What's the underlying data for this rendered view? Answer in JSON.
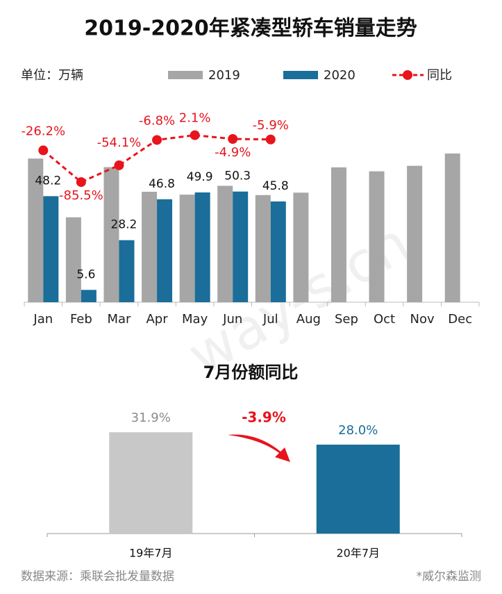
{
  "chart_data": [
    {
      "type": "bar",
      "title": "2019-2020年紧凑型轿车销量走势",
      "subtitle": "单位：万辆",
      "categories": [
        "Jan",
        "Feb",
        "Mar",
        "Apr",
        "May",
        "Jun",
        "Jul",
        "Aug",
        "Sep",
        "Oct",
        "Nov",
        "Dec"
      ],
      "series": [
        {
          "name": "2019",
          "color": "#a6a6a6",
          "values": [
            65.3,
            38.6,
            61.4,
            50.2,
            48.9,
            52.9,
            48.7,
            49.8,
            61.3,
            59.5,
            62.0,
            67.6
          ]
        },
        {
          "name": "2020",
          "color": "#1a6e99",
          "values": [
            48.2,
            5.6,
            28.2,
            46.8,
            49.9,
            50.3,
            45.8,
            null,
            null,
            null,
            null,
            null
          ]
        },
        {
          "name": "同比",
          "color": "#e8141c",
          "type": "line",
          "axis": "y2",
          "values": [
            -26.2,
            -85.5,
            -54.1,
            -6.8,
            2.1,
            -4.9,
            -5.9,
            null,
            null,
            null,
            null,
            null
          ],
          "value_labels": [
            "-26.2%",
            "-85.5%",
            "-54.1%",
            "-6.8%",
            "2.1%",
            "-4.9%",
            "-5.9%",
            null,
            null,
            null,
            null,
            null
          ]
        }
      ],
      "ylim": [
        0,
        90
      ],
      "y2lim": [
        -310,
        60
      ]
    },
    {
      "type": "bar",
      "title": "7月份额同比",
      "categories": [
        "19年7月",
        "20年7月"
      ],
      "values": [
        31.9,
        28.0
      ],
      "value_labels": [
        "31.9%",
        "28.0%"
      ],
      "colors": [
        "#c8c8c8",
        "#1a6e99"
      ],
      "label_colors": [
        "#8c8c8c",
        "#1a6e99"
      ],
      "ylim": [
        0,
        35
      ],
      "annotation": "-3.9%"
    }
  ],
  "watermark": "way-s.cn",
  "footer": {
    "source": "数据来源：乘联会批发量数据",
    "note": "*威尔森监测"
  }
}
